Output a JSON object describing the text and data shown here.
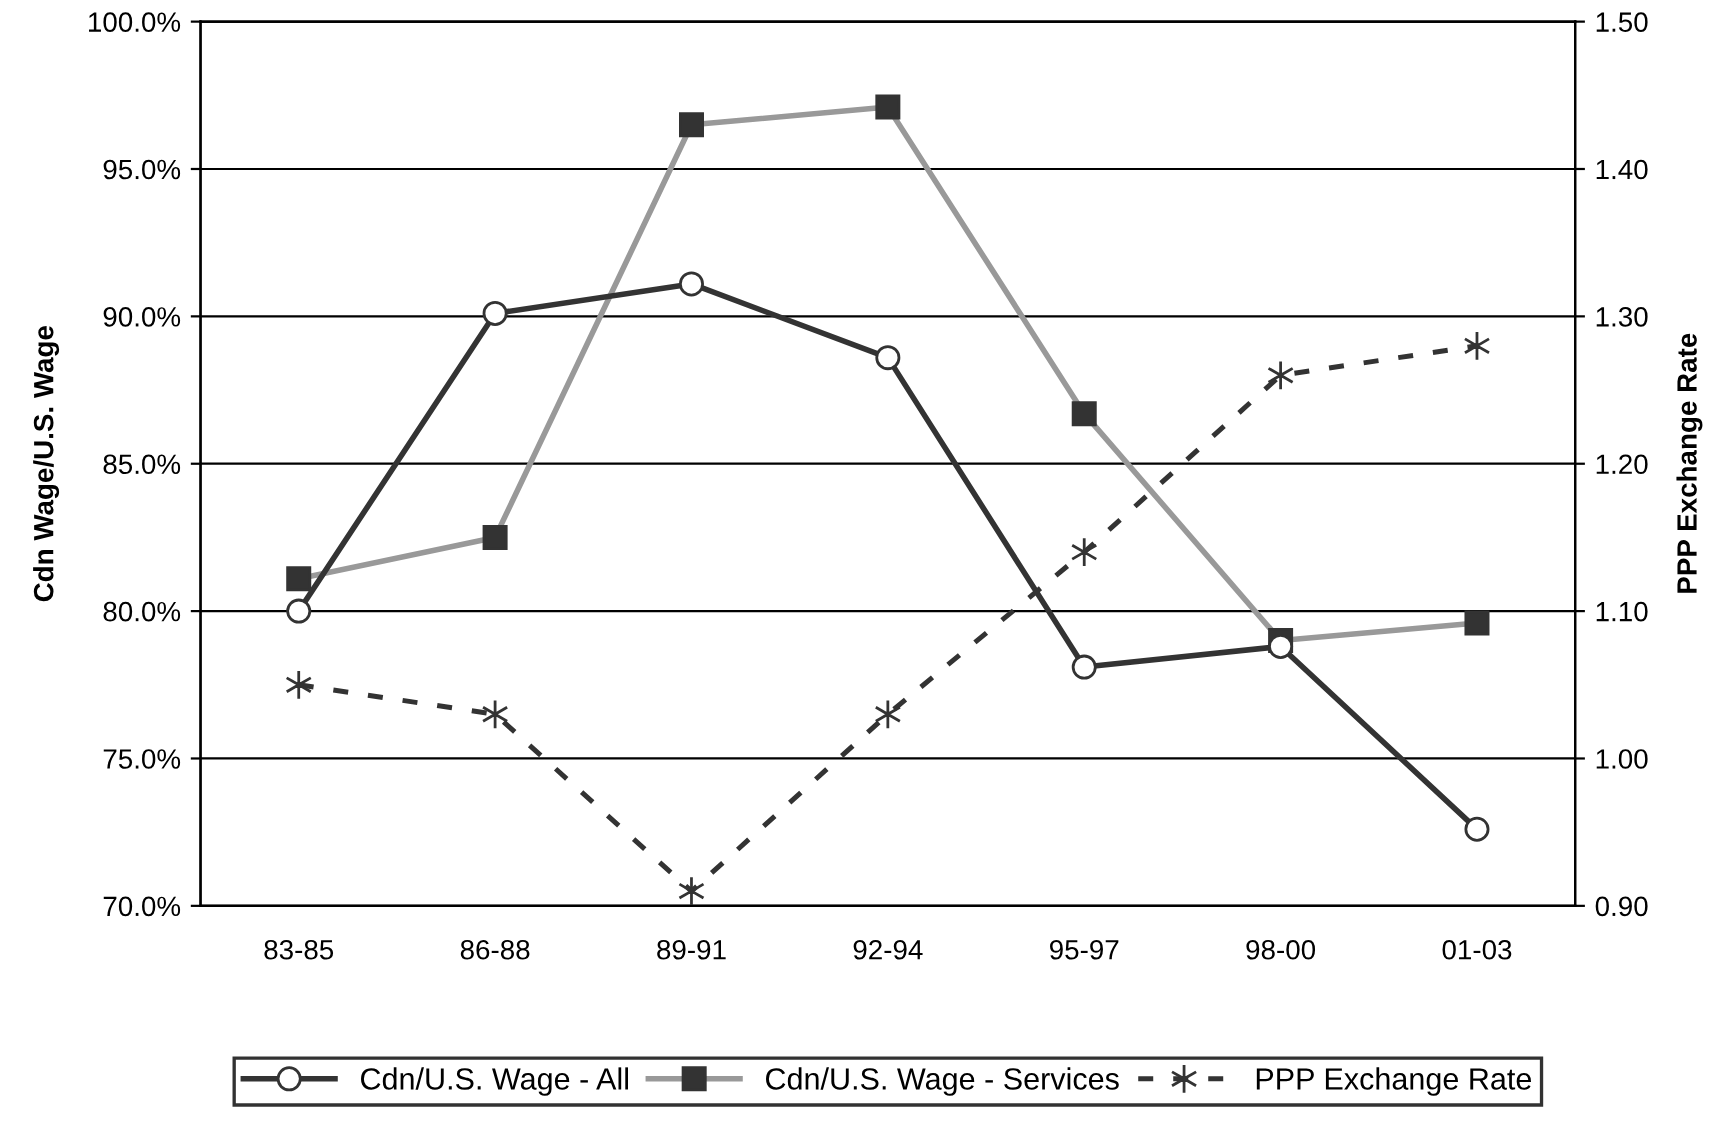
{
  "chart_data": {
    "type": "line",
    "categories": [
      "83-85",
      "86-88",
      "89-91",
      "92-94",
      "95-97",
      "98-00",
      "01-03"
    ],
    "ylabel": "Cdn Wage/U.S. Wage",
    "y2label": "PPP Exchange Rate",
    "ylim": [
      70,
      100
    ],
    "yticks": [
      {
        "value": 70,
        "label": "70.0%"
      },
      {
        "value": 75,
        "label": "75.0%"
      },
      {
        "value": 80,
        "label": "80.0%"
      },
      {
        "value": 85,
        "label": "85.0%"
      },
      {
        "value": 90,
        "label": "90.0%"
      },
      {
        "value": 95,
        "label": "95.0%"
      },
      {
        "value": 100,
        "label": "100.0%"
      }
    ],
    "y2lim": [
      0.9,
      1.5
    ],
    "y2ticks": [
      {
        "value": 0.9,
        "label": "0.90"
      },
      {
        "value": 1.0,
        "label": "1.00"
      },
      {
        "value": 1.1,
        "label": "1.10"
      },
      {
        "value": 1.2,
        "label": "1.20"
      },
      {
        "value": 1.3,
        "label": "1.30"
      },
      {
        "value": 1.4,
        "label": "1.40"
      },
      {
        "value": 1.5,
        "label": "1.50"
      }
    ],
    "grid": "y",
    "legend": "bottom",
    "series": [
      {
        "name": "Cdn/U.S. Wage - All",
        "color": "#333333",
        "marker": "circle",
        "line_style": "solid",
        "values": [
          80.0,
          90.1,
          91.1,
          88.6,
          78.1,
          78.8,
          72.6
        ]
      },
      {
        "name": "Cdn/U.S. Wage - Services",
        "color": "#999999",
        "marker": "square",
        "line_style": "solid",
        "values": [
          81.1,
          82.5,
          96.5,
          97.1,
          86.7,
          79.0,
          79.6
        ]
      },
      {
        "name": "PPP Exchange Rate",
        "color": "#333333",
        "marker": "cross",
        "line_style": "dashed",
        "axis": "y2",
        "values": [
          1.05,
          1.03,
          0.91,
          1.03,
          1.14,
          1.26,
          1.28
        ]
      }
    ]
  }
}
